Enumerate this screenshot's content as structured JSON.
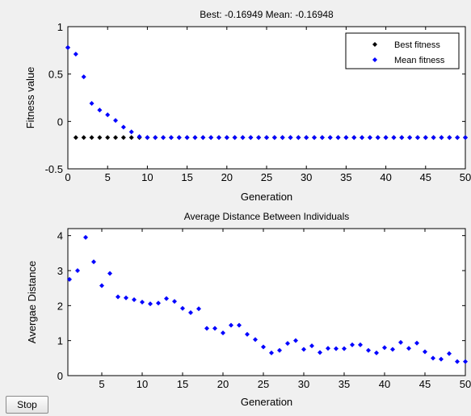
{
  "stop_button_label": "Stop",
  "chart_data": [
    {
      "type": "scatter",
      "title": "Best: -0.16949 Mean: -0.16948",
      "xlabel": "Generation",
      "ylabel": "Fitness value",
      "xlim": [
        0,
        50
      ],
      "ylim": [
        -0.5,
        1
      ],
      "xticks": [
        0,
        5,
        10,
        15,
        20,
        25,
        30,
        35,
        40,
        45,
        50
      ],
      "yticks": [
        -0.5,
        0,
        0.5,
        1
      ],
      "ytick_labels": [
        "-0.5",
        "0",
        "0.5",
        "1"
      ],
      "grid": false,
      "legend": "top-right",
      "series": [
        {
          "name": "Best fitness",
          "color": "#000000",
          "marker": "diamond",
          "x": [
            0,
            1,
            2,
            3,
            4,
            5,
            6,
            7,
            8,
            9,
            10,
            11,
            12,
            13,
            14,
            15,
            16,
            17,
            18,
            19,
            20,
            21,
            22,
            23,
            24,
            25,
            26,
            27,
            28,
            29,
            30,
            31,
            32,
            33,
            34,
            35,
            36,
            37,
            38,
            39,
            40,
            41,
            42,
            43,
            44,
            45,
            46,
            47,
            48,
            49,
            50
          ],
          "y": [
            0.78,
            -0.17,
            -0.17,
            -0.17,
            -0.17,
            -0.17,
            -0.17,
            -0.17,
            -0.17,
            -0.17,
            -0.17,
            -0.17,
            -0.17,
            -0.17,
            -0.17,
            -0.17,
            -0.17,
            -0.17,
            -0.17,
            -0.17,
            -0.17,
            -0.17,
            -0.17,
            -0.17,
            -0.17,
            -0.17,
            -0.17,
            -0.17,
            -0.17,
            -0.17,
            -0.17,
            -0.17,
            -0.17,
            -0.17,
            -0.17,
            -0.17,
            -0.17,
            -0.17,
            -0.17,
            -0.17,
            -0.17,
            -0.17,
            -0.17,
            -0.17,
            -0.17,
            -0.17,
            -0.17,
            -0.17,
            -0.17,
            -0.17,
            -0.17
          ]
        },
        {
          "name": "Mean fitness",
          "color": "#0000ff",
          "marker": "diamond",
          "x": [
            0,
            1,
            2,
            3,
            4,
            5,
            6,
            7,
            8,
            9,
            10,
            11,
            12,
            13,
            14,
            15,
            16,
            17,
            18,
            19,
            20,
            21,
            22,
            23,
            24,
            25,
            26,
            27,
            28,
            29,
            30,
            31,
            32,
            33,
            34,
            35,
            36,
            37,
            38,
            39,
            40,
            41,
            42,
            43,
            44,
            45,
            46,
            47,
            48,
            49,
            50
          ],
          "y": [
            0.78,
            0.71,
            0.47,
            0.19,
            0.12,
            0.07,
            0.01,
            -0.06,
            -0.11,
            -0.16,
            -0.17,
            -0.17,
            -0.17,
            -0.17,
            -0.17,
            -0.17,
            -0.17,
            -0.17,
            -0.17,
            -0.17,
            -0.17,
            -0.17,
            -0.17,
            -0.17,
            -0.17,
            -0.17,
            -0.17,
            -0.17,
            -0.17,
            -0.17,
            -0.17,
            -0.17,
            -0.17,
            -0.17,
            -0.17,
            -0.17,
            -0.17,
            -0.17,
            -0.17,
            -0.17,
            -0.17,
            -0.17,
            -0.17,
            -0.17,
            -0.17,
            -0.17,
            -0.17,
            -0.17,
            -0.17,
            -0.17,
            -0.17
          ]
        }
      ]
    },
    {
      "type": "scatter",
      "title": "Average Distance Between Individuals",
      "xlabel": "Generation",
      "ylabel": "Avergae Distance",
      "xlim": [
        0.8,
        50
      ],
      "ylim": [
        0,
        4.2
      ],
      "xticks": [
        5,
        10,
        15,
        20,
        25,
        30,
        35,
        40,
        45,
        50
      ],
      "yticks": [
        0,
        1,
        2,
        3,
        4
      ],
      "ytick_labels": [
        "0",
        "1",
        "2",
        "3",
        "4"
      ],
      "grid": false,
      "series": [
        {
          "color": "#0000ff",
          "marker": "diamond",
          "x": [
            1,
            2,
            3,
            4,
            5,
            6,
            7,
            8,
            9,
            10,
            11,
            12,
            13,
            14,
            15,
            16,
            17,
            18,
            19,
            20,
            21,
            22,
            23,
            24,
            25,
            26,
            27,
            28,
            29,
            30,
            31,
            32,
            33,
            34,
            35,
            36,
            37,
            38,
            39,
            40,
            41,
            42,
            43,
            44,
            45,
            46,
            47,
            48,
            49,
            50
          ],
          "y": [
            2.75,
            3.0,
            3.95,
            3.25,
            2.57,
            2.92,
            2.25,
            2.22,
            2.17,
            2.1,
            2.05,
            2.07,
            2.2,
            2.12,
            1.92,
            1.8,
            1.91,
            1.35,
            1.35,
            1.22,
            1.44,
            1.44,
            1.18,
            1.03,
            0.82,
            0.65,
            0.72,
            0.92,
            1.0,
            0.75,
            0.85,
            0.66,
            0.78,
            0.77,
            0.77,
            0.88,
            0.88,
            0.72,
            0.65,
            0.8,
            0.75,
            0.95,
            0.78,
            0.93,
            0.68,
            0.5,
            0.47,
            0.63,
            0.4,
            0.4
          ]
        }
      ]
    }
  ]
}
